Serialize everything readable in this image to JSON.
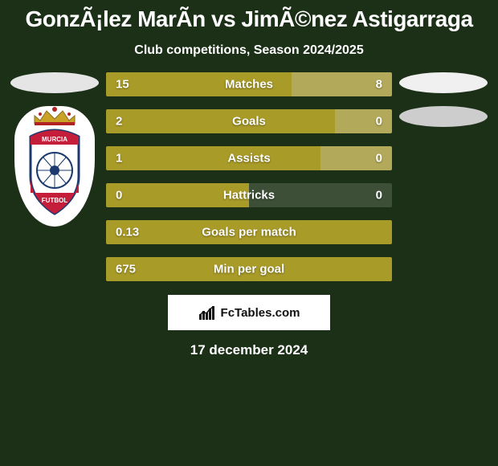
{
  "background_color": "#1c3018",
  "text_color": "#ffffff",
  "title": "GonzÃ¡lez MarÃ­n vs JimÃ©nez Astigarraga",
  "subtitle": "Club competitions, Season 2024/2025",
  "date": "17 december 2024",
  "left_color": "#a99b28",
  "right_color": "#b3a95a",
  "track_color": "#3d4f37",
  "bars": [
    {
      "label": "Matches",
      "left_val": "15",
      "right_val": "8",
      "left_pct": 65,
      "right_pct": 35
    },
    {
      "label": "Goals",
      "left_val": "2",
      "right_val": "0",
      "left_pct": 80,
      "right_pct": 20
    },
    {
      "label": "Assists",
      "left_val": "1",
      "right_val": "0",
      "left_pct": 75,
      "right_pct": 25
    },
    {
      "label": "Hattricks",
      "left_val": "0",
      "right_val": "0",
      "left_pct": 50,
      "right_pct": 0
    },
    {
      "label": "Goals per match",
      "left_val": "0.13",
      "right_val": "",
      "left_pct": 100,
      "right_pct": 0
    },
    {
      "label": "Min per goal",
      "left_val": "675",
      "right_val": "",
      "left_pct": 100,
      "right_pct": 0
    }
  ],
  "footer": {
    "box_bg": "#ffffff",
    "box_border": "#1c3018",
    "text": "FcTables.com",
    "text_color": "#111111"
  },
  "crest": {
    "crown_gold": "#c9a227",
    "crown_red": "#b22222",
    "shield_outline": "#1c3a6e",
    "shield_red": "#c41e3a",
    "shield_text": "MURCIA",
    "shield_text2": "FUTBOL"
  }
}
